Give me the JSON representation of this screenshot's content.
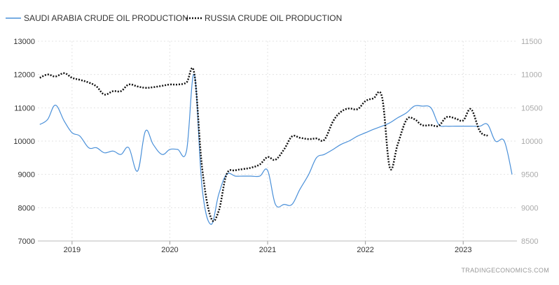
{
  "chart_data": {
    "type": "line",
    "legend_position": "top-left",
    "grid": true,
    "source_text": "TRADINGECONOMICS.COM",
    "x_tick_labels": [
      "2019",
      "2020",
      "2021",
      "2022",
      "2023"
    ],
    "x_range": [
      2018.65,
      2023.55
    ],
    "y_left": {
      "ticks": [
        7000,
        8000,
        9000,
        10000,
        11000,
        12000,
        13000
      ],
      "ylim": [
        7000,
        13000
      ]
    },
    "y_right": {
      "ticks": [
        8500,
        9000,
        9500,
        10000,
        10500,
        11000,
        11500
      ],
      "ylim": [
        8500,
        11500
      ]
    },
    "series": [
      {
        "name": "SAUDI ARABIA CRUDE OIL PRODUCTION",
        "axis": "left",
        "color": "#4a90d9",
        "dash": "solid",
        "points": [
          [
            2018.67,
            10500
          ],
          [
            2018.75,
            10650
          ],
          [
            2018.83,
            11080
          ],
          [
            2018.92,
            10600
          ],
          [
            2019.0,
            10250
          ],
          [
            2019.08,
            10150
          ],
          [
            2019.17,
            9800
          ],
          [
            2019.25,
            9800
          ],
          [
            2019.33,
            9650
          ],
          [
            2019.42,
            9700
          ],
          [
            2019.5,
            9600
          ],
          [
            2019.58,
            9800
          ],
          [
            2019.67,
            9100
          ],
          [
            2019.75,
            10300
          ],
          [
            2019.83,
            9900
          ],
          [
            2019.92,
            9600
          ],
          [
            2020.0,
            9750
          ],
          [
            2020.08,
            9750
          ],
          [
            2020.17,
            9700
          ],
          [
            2020.25,
            12000
          ],
          [
            2020.33,
            8600
          ],
          [
            2020.42,
            7500
          ],
          [
            2020.5,
            8400
          ],
          [
            2020.58,
            9000
          ],
          [
            2020.67,
            8950
          ],
          [
            2020.75,
            8950
          ],
          [
            2020.83,
            8950
          ],
          [
            2020.92,
            8950
          ],
          [
            2021.0,
            9120
          ],
          [
            2021.08,
            8100
          ],
          [
            2021.17,
            8100
          ],
          [
            2021.25,
            8100
          ],
          [
            2021.33,
            8550
          ],
          [
            2021.42,
            9000
          ],
          [
            2021.5,
            9500
          ],
          [
            2021.58,
            9600
          ],
          [
            2021.67,
            9750
          ],
          [
            2021.75,
            9900
          ],
          [
            2021.83,
            10000
          ],
          [
            2021.92,
            10150
          ],
          [
            2022.0,
            10250
          ],
          [
            2022.08,
            10350
          ],
          [
            2022.17,
            10450
          ],
          [
            2022.25,
            10550
          ],
          [
            2022.33,
            10700
          ],
          [
            2022.42,
            10850
          ],
          [
            2022.5,
            11050
          ],
          [
            2022.58,
            11050
          ],
          [
            2022.67,
            11000
          ],
          [
            2022.75,
            10500
          ],
          [
            2022.83,
            10450
          ],
          [
            2022.92,
            10450
          ],
          [
            2023.0,
            10450
          ],
          [
            2023.08,
            10450
          ],
          [
            2023.17,
            10450
          ],
          [
            2023.25,
            10500
          ],
          [
            2023.33,
            10000
          ],
          [
            2023.42,
            10000
          ],
          [
            2023.5,
            9000
          ]
        ]
      },
      {
        "name": "RUSSIA CRUDE OIL PRODUCTION",
        "axis": "right",
        "color": "#111111",
        "dash": "dotted",
        "points": [
          [
            2018.67,
            10950
          ],
          [
            2018.75,
            11000
          ],
          [
            2018.83,
            10970
          ],
          [
            2018.92,
            11020
          ],
          [
            2019.0,
            10950
          ],
          [
            2019.08,
            10920
          ],
          [
            2019.17,
            10880
          ],
          [
            2019.25,
            10820
          ],
          [
            2019.33,
            10700
          ],
          [
            2019.42,
            10750
          ],
          [
            2019.5,
            10750
          ],
          [
            2019.58,
            10850
          ],
          [
            2019.67,
            10820
          ],
          [
            2019.75,
            10800
          ],
          [
            2019.83,
            10810
          ],
          [
            2019.92,
            10830
          ],
          [
            2020.0,
            10850
          ],
          [
            2020.08,
            10850
          ],
          [
            2020.17,
            10880
          ],
          [
            2020.25,
            11020
          ],
          [
            2020.33,
            9600
          ],
          [
            2020.42,
            8850
          ],
          [
            2020.5,
            8950
          ],
          [
            2020.58,
            9500
          ],
          [
            2020.67,
            9560
          ],
          [
            2020.75,
            9580
          ],
          [
            2020.83,
            9600
          ],
          [
            2020.92,
            9650
          ],
          [
            2021.0,
            9760
          ],
          [
            2021.08,
            9720
          ],
          [
            2021.17,
            9880
          ],
          [
            2021.25,
            10070
          ],
          [
            2021.33,
            10050
          ],
          [
            2021.42,
            10030
          ],
          [
            2021.5,
            10040
          ],
          [
            2021.58,
            10020
          ],
          [
            2021.67,
            10300
          ],
          [
            2021.75,
            10440
          ],
          [
            2021.83,
            10490
          ],
          [
            2021.92,
            10480
          ],
          [
            2022.0,
            10600
          ],
          [
            2022.08,
            10640
          ],
          [
            2022.17,
            10660
          ],
          [
            2022.25,
            9600
          ],
          [
            2022.33,
            9950
          ],
          [
            2022.42,
            10320
          ],
          [
            2022.5,
            10330
          ],
          [
            2022.58,
            10240
          ],
          [
            2022.67,
            10240
          ],
          [
            2022.75,
            10230
          ],
          [
            2022.83,
            10360
          ],
          [
            2022.92,
            10340
          ],
          [
            2023.0,
            10310
          ],
          [
            2023.08,
            10480
          ],
          [
            2023.17,
            10150
          ],
          [
            2023.25,
            10080
          ]
        ]
      }
    ]
  }
}
